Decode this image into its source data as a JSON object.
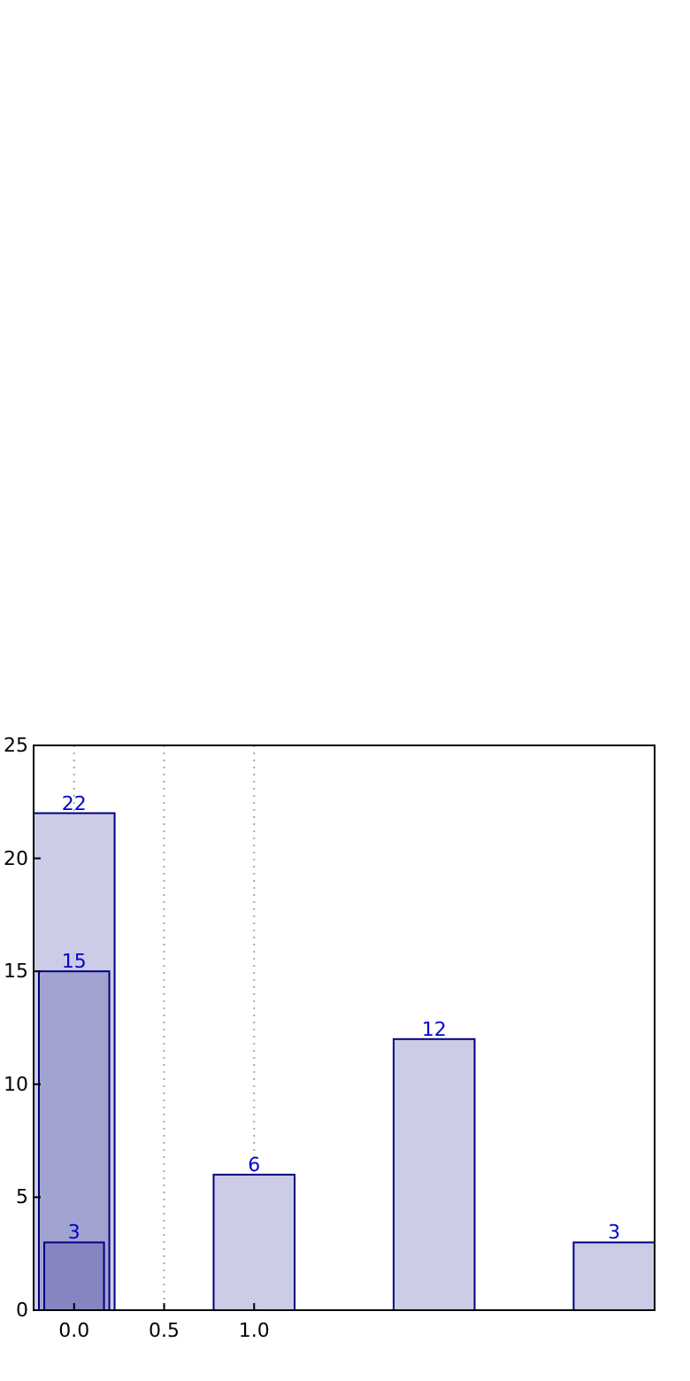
{
  "chart_data": {
    "type": "bar",
    "series": [
      {
        "color": "#cccce6",
        "x": [
          0,
          1,
          2,
          3
        ],
        "values": [
          22,
          6,
          12,
          3
        ]
      },
      {
        "color": "#a3a3d1",
        "x": [
          0
        ],
        "values": [
          15
        ]
      },
      {
        "color": "#8585c2",
        "x": [
          0
        ],
        "values": [
          3
        ]
      }
    ],
    "xlim": [
      -0.225,
      3.225
    ],
    "xticks": [
      {
        "value": 0,
        "label": "0.0"
      },
      {
        "value": 0.5,
        "label": "0.5"
      },
      {
        "value": 1,
        "label": "1.0"
      }
    ],
    "ylim": [
      0,
      25
    ],
    "yticks": [
      0,
      5,
      10,
      15,
      20,
      25
    ],
    "grid": "x",
    "data_labels": true
  }
}
